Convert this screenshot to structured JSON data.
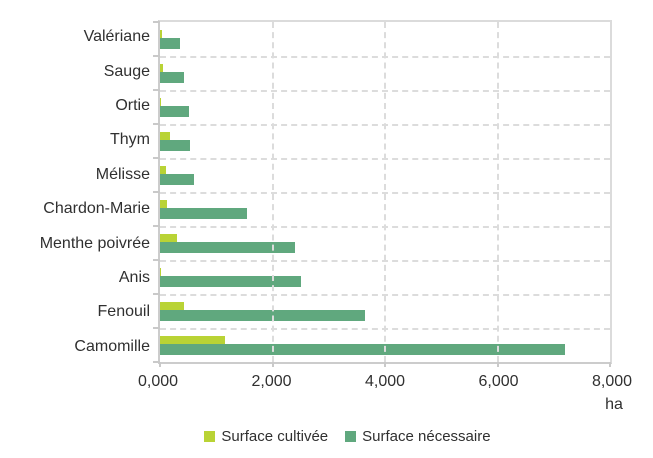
{
  "chart_data": {
    "type": "bar",
    "orientation": "horizontal",
    "title": "",
    "categories": [
      "Valériane",
      "Sauge",
      "Ortie",
      "Thym",
      "Mélisse",
      "Chardon-Marie",
      "Menthe poivrée",
      "Anis",
      "Fenouil",
      "Camomille"
    ],
    "series": [
      {
        "name": "Surface cultivée",
        "color": "#b9d335",
        "values": [
          35,
          50,
          15,
          170,
          110,
          120,
          310,
          25,
          430,
          1150
        ]
      },
      {
        "name": "Surface nécessaire",
        "color": "#60a87e",
        "values": [
          350,
          420,
          510,
          530,
          610,
          1550,
          2400,
          2500,
          3650,
          7200
        ]
      }
    ],
    "xlabel": "ha",
    "xlim": [
      0,
      8000
    ],
    "x_tick_values": [
      0,
      2000,
      4000,
      6000,
      8000
    ],
    "x_tick_labels": [
      "0,000",
      "2,000",
      "4,000",
      "6,000",
      "8,000"
    ],
    "grid": "dashed",
    "legend_position": "bottom-center"
  },
  "colors": {
    "grid": "#dcdcdc",
    "axis": "#cccccc",
    "text": "#303030",
    "background": "#ffffff"
  }
}
